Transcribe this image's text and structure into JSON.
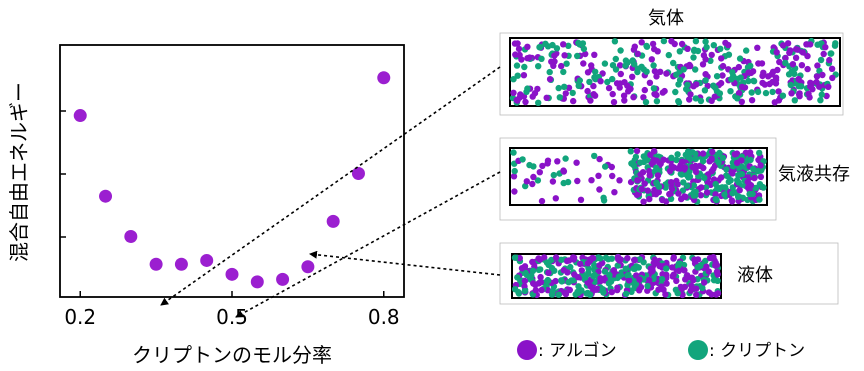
{
  "chart_data": [
    {
      "type": "scatter",
      "xlabel": "クリプトンのモル分率",
      "ylabel": "混合自由エネルギー",
      "xlim": [
        0.16,
        0.84
      ],
      "x_ticks": [
        0.2,
        0.5,
        0.8
      ],
      "x_tick_labels": [
        "0.2",
        "0.5",
        "0.8"
      ],
      "y_tick_count": 3,
      "grid": false,
      "marker_color": "#9b1fd0",
      "x": [
        0.2,
        0.25,
        0.3,
        0.35,
        0.4,
        0.45,
        0.5,
        0.55,
        0.6,
        0.65,
        0.7,
        0.75,
        0.8
      ],
      "y": [
        0.72,
        0.4,
        0.24,
        0.13,
        0.13,
        0.145,
        0.09,
        0.06,
        0.07,
        0.12,
        0.3,
        0.49,
        0.87
      ],
      "annotations": [
        {
          "from_panel": "gas",
          "to_x": 0.35
        },
        {
          "from_panel": "coexistence",
          "to_x": 0.5
        },
        {
          "from_panel": "liquid",
          "to_x": 0.65
        }
      ]
    }
  ],
  "panels": {
    "gas": {
      "label": "気体"
    },
    "coexistence": {
      "label": "気液共存"
    },
    "liquid": {
      "label": "液体"
    }
  },
  "legend": {
    "argon": {
      "label": ": アルゴン",
      "color": "#8a12c8"
    },
    "krypton": {
      "label": ": クリプトン",
      "color": "#12a57c"
    }
  }
}
